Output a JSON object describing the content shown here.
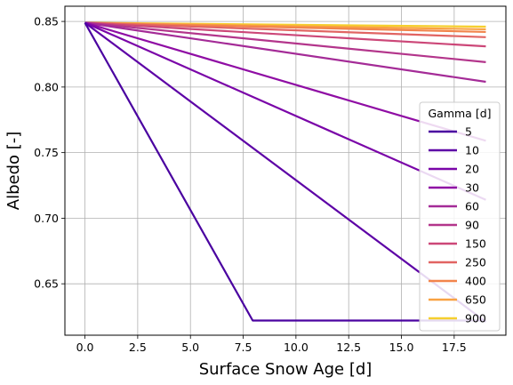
{
  "chart_data": {
    "type": "line",
    "xlabel": "Surface Snow Age [d]",
    "ylabel": "Albedo [-]",
    "xlim": [
      -0.95,
      19.95
    ],
    "ylim": [
      0.6108,
      0.8616
    ],
    "x_ticks": [
      0,
      2.5,
      5,
      7.5,
      10,
      12.5,
      15,
      17.5
    ],
    "x_tick_labels": [
      "0.0",
      "2.5",
      "5.0",
      "7.5",
      "10.0",
      "12.5",
      "15.0",
      "17.5"
    ],
    "y_ticks": [
      0.65,
      0.7,
      0.75,
      0.8,
      0.85
    ],
    "y_tick_labels": [
      "0.65",
      "0.70",
      "0.75",
      "0.80",
      "0.85"
    ],
    "grid": true,
    "legend": {
      "title": "Gamma [d]",
      "position": "right"
    },
    "x": [
      0,
      19
    ],
    "series": [
      {
        "name": "5",
        "color": "#4a03a0",
        "x": [
          0,
          7.95,
          19
        ],
        "values": [
          0.849,
          0.622,
          0.622
        ]
      },
      {
        "name": "10",
        "color": "#5d02a6",
        "x": [
          0,
          19
        ],
        "values": [
          0.849,
          0.621
        ]
      },
      {
        "name": "20",
        "color": "#7a05a8",
        "x": [
          0,
          19
        ],
        "values": [
          0.849,
          0.714
        ]
      },
      {
        "name": "30",
        "color": "#8f0da4",
        "x": [
          0,
          19
        ],
        "values": [
          0.849,
          0.759
        ]
      },
      {
        "name": "60",
        "color": "#a42b97",
        "x": [
          0,
          19
        ],
        "values": [
          0.849,
          0.804
        ]
      },
      {
        "name": "90",
        "color": "#b3358b",
        "x": [
          0,
          19
        ],
        "values": [
          0.849,
          0.819
        ]
      },
      {
        "name": "150",
        "color": "#cc4778",
        "x": [
          0,
          19
        ],
        "values": [
          0.849,
          0.831
        ]
      },
      {
        "name": "250",
        "color": "#e16462",
        "x": [
          0,
          19
        ],
        "values": [
          0.849,
          0.838
        ]
      },
      {
        "name": "400",
        "color": "#f2844b",
        "x": [
          0,
          19
        ],
        "values": [
          0.849,
          0.842
        ]
      },
      {
        "name": "650",
        "color": "#f9a242",
        "x": [
          0,
          19
        ],
        "values": [
          0.849,
          0.844
        ]
      },
      {
        "name": "900",
        "color": "#f5cf2e",
        "x": [
          0,
          19
        ],
        "values": [
          0.849,
          0.846
        ]
      }
    ]
  }
}
